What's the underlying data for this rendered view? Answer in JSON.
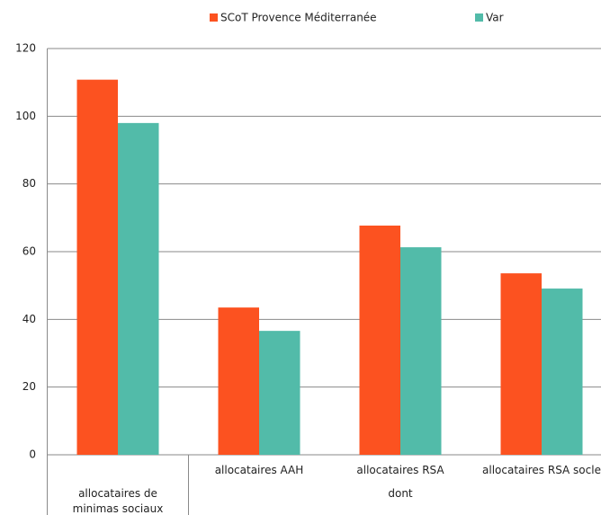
{
  "chart_data": {
    "type": "bar",
    "categories": [
      "allocataires de minimas sociaux",
      "allocataires AAH",
      "allocataires RSA",
      "allocataires RSA socle"
    ],
    "group_label": "dont",
    "series": [
      {
        "name": "SCoT Provence Méditerranée",
        "color": "#fc5220",
        "values": [
          110.8,
          43.5,
          67.7,
          53.6
        ]
      },
      {
        "name": "Var",
        "color": "#52bba9",
        "values": [
          98,
          36.6,
          61.3,
          49.1
        ]
      }
    ],
    "ylim": [
      0,
      120
    ],
    "yticks": [
      0,
      20,
      40,
      60,
      80,
      100,
      120
    ],
    "grid": true,
    "legend": "top"
  }
}
